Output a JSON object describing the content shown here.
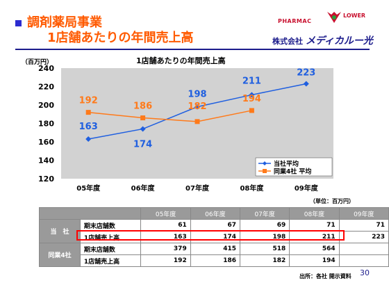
{
  "header": {
    "title_line1": "調剤薬局事業",
    "title_line2": "1店舗あたりの年間売上高"
  },
  "logo": {
    "pharmac": "PHARMAC",
    "flower": "LOWER",
    "company_prefix": "株式会社",
    "company_brand": "メディカルー光"
  },
  "colors": {
    "blue": "#1f5fe0",
    "orange": "#ff7a1a",
    "plot_bg": "#d2d2d2",
    "title": "#ff5a00"
  },
  "chart_data": {
    "type": "line",
    "title": "1店舗あたりの年間売上高",
    "unit_label": "（百万円）",
    "categories": [
      "05年度",
      "06年度",
      "07年度",
      "08年度",
      "09年度"
    ],
    "ylim": [
      120,
      240
    ],
    "yticks": [
      120,
      140,
      160,
      180,
      200,
      220,
      240
    ],
    "grid": false,
    "legend_position": "bottom-right",
    "series": [
      {
        "name": "当社平均",
        "values": [
          163,
          174,
          198,
          211,
          223
        ],
        "color": "#1f5fe0",
        "marker": "diamond"
      },
      {
        "name": "同業4社 平均",
        "values": [
          192,
          186,
          182,
          194,
          null
        ],
        "color": "#ff7a1a",
        "marker": "square"
      }
    ]
  },
  "table": {
    "unit": "（単位：百万円）",
    "columns": [
      "05年度",
      "06年度",
      "07年度",
      "08年度",
      "09年度"
    ],
    "groups": [
      {
        "name": "当　社",
        "rows": [
          {
            "label": "期末店舗数",
            "values": [
              "61",
              "67",
              "69",
              "71",
              "71"
            ]
          },
          {
            "label": "1店舗売上高",
            "values": [
              "163",
              "174",
              "198",
              "211",
              "223"
            ]
          }
        ]
      },
      {
        "name": "同業4社",
        "rows": [
          {
            "label": "期末店舗数",
            "values": [
              "379",
              "415",
              "518",
              "564",
              ""
            ]
          },
          {
            "label": "1店舗売上高",
            "values": [
              "192",
              "186",
              "182",
              "194",
              ""
            ]
          }
        ]
      }
    ]
  },
  "footer": {
    "source": "出所：各社 開示資料",
    "page": "30"
  }
}
